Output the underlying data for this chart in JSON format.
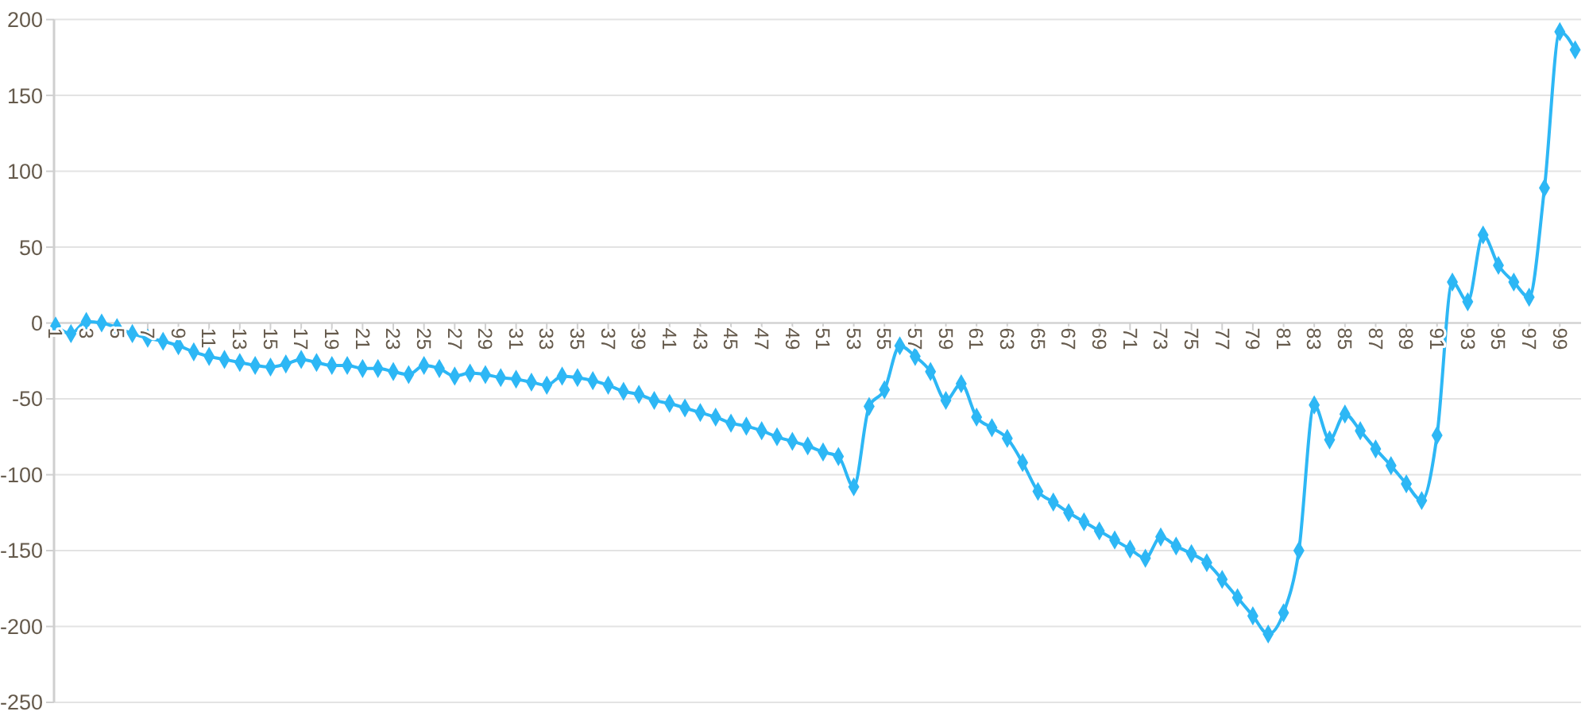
{
  "chart_data": {
    "type": "line",
    "categories": [
      "1",
      null,
      "3",
      null,
      "5",
      null,
      "7",
      null,
      "9",
      null,
      "11",
      null,
      "13",
      null,
      "15",
      null,
      "17",
      null,
      "19",
      null,
      "21",
      null,
      "23",
      null,
      "25",
      null,
      "27",
      null,
      "29",
      null,
      "31",
      null,
      "33",
      null,
      "35",
      null,
      "37",
      null,
      "39",
      null,
      "41",
      null,
      "43",
      null,
      "45",
      null,
      "47",
      null,
      "49",
      null,
      "51",
      null,
      "53",
      null,
      "55",
      null,
      "57",
      null,
      "59",
      null,
      "61",
      null,
      "63",
      null,
      "65",
      null,
      "67",
      null,
      "69",
      null,
      "71",
      null,
      "73",
      null,
      "75",
      null,
      "77",
      null,
      "79",
      null,
      "81",
      null,
      "83",
      null,
      "85",
      null,
      "87",
      null,
      "89",
      null,
      "91",
      null,
      "93",
      null,
      "95",
      null,
      "97",
      null,
      "99",
      null
    ],
    "values": [
      -2,
      -7,
      1,
      0,
      -3,
      -7,
      -10,
      -12,
      -15,
      -19,
      -22,
      -24,
      -26,
      -28,
      -29,
      -27,
      -24,
      -26,
      -28,
      -28,
      -30,
      -30,
      -32,
      -34,
      -28,
      -30,
      -35,
      -33,
      -34,
      -36,
      -37,
      -39,
      -41,
      -35,
      -36,
      -38,
      -41,
      -45,
      -47,
      -51,
      -53,
      -56,
      -59,
      -62,
      -66,
      -68,
      -71,
      -75,
      -78,
      -81,
      -85,
      -88,
      -108,
      -55,
      -44,
      -15,
      -22,
      -32,
      -51,
      -40,
      -62,
      -69,
      -76,
      -92,
      -111,
      -118,
      -125,
      -131,
      -137,
      -143,
      -149,
      -155,
      -141,
      -147,
      -152,
      -158,
      -169,
      -181,
      -193,
      -205,
      -191,
      -150,
      -54,
      -77,
      -60,
      -71,
      -83,
      -94,
      -106,
      -117,
      -74,
      27,
      14,
      58,
      38,
      27,
      17,
      89,
      192,
      180
    ],
    "color": "#2db7f5",
    "ylim": [
      -250,
      200
    ],
    "yticks": [
      -250,
      -200,
      -150,
      -100,
      -50,
      0,
      50,
      100,
      150,
      200
    ],
    "grid": "y",
    "marker": "diamond",
    "line_style": "solid"
  }
}
